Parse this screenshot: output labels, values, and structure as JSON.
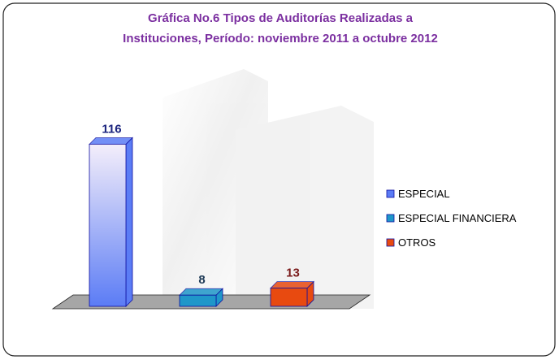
{
  "chart_data": {
    "type": "bar3d",
    "title": [
      "Gráfica No.6 Tipos de Auditorías Realizadas a",
      "Instituciones, Período: noviembre 2011 a octubre 2012"
    ],
    "series": [
      {
        "name": "ESPECIAL",
        "color": "#5b7cf5",
        "label_color": "#1a237e",
        "values": [
          116
        ]
      },
      {
        "name": "ESPECIAL FINANCIERA",
        "color": "#1f97c9",
        "label_color": "#1f3b57",
        "values": [
          8
        ]
      },
      {
        "name": "OTROS",
        "color": "#e84a10",
        "label_color": "#7a1a1a",
        "values": [
          13
        ]
      }
    ]
  }
}
